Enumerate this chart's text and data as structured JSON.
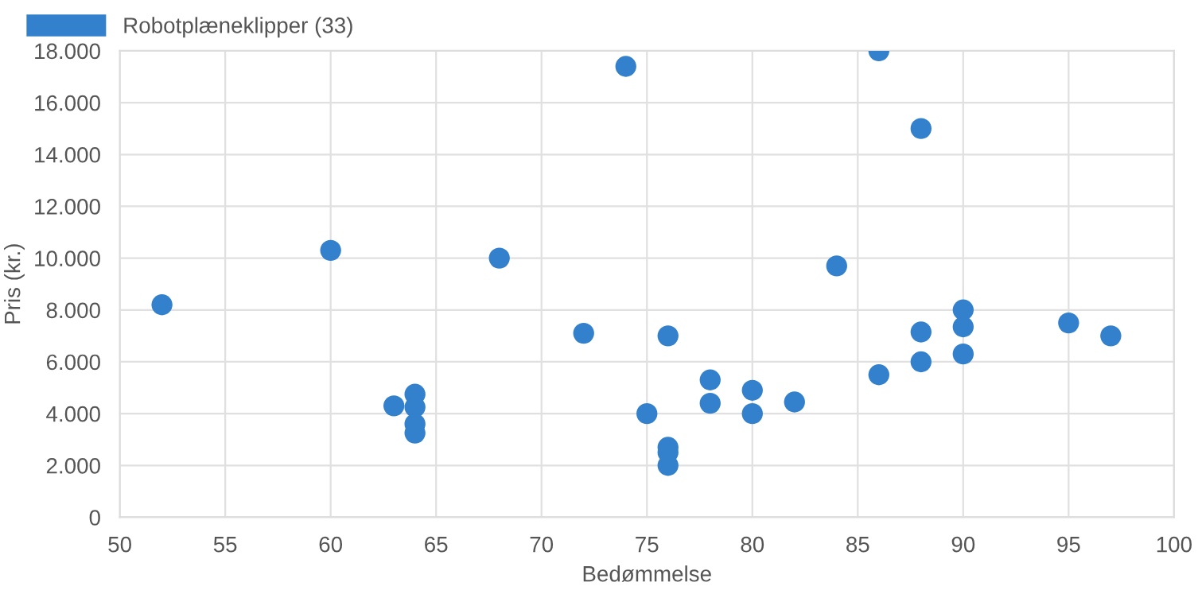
{
  "chart_data": {
    "type": "scatter",
    "xlabel": "Bedømmelse",
    "ylabel": "Pris (kr.)",
    "series": [
      {
        "name": "Robotplæneklipper (33)",
        "color": "#3380cc",
        "x": [
          52,
          60,
          68,
          72,
          63,
          64,
          64,
          64,
          64,
          74,
          86,
          88,
          84,
          90,
          90,
          88,
          95,
          97,
          76,
          90,
          88,
          86,
          78,
          78,
          80,
          80,
          82,
          75,
          76,
          76,
          76
        ],
        "values": [
          8200,
          10300,
          10000,
          7100,
          4300,
          4750,
          4250,
          3600,
          3250,
          17400,
          18000,
          15000,
          9700,
          8000,
          7350,
          7150,
          7500,
          7000,
          7000,
          6300,
          6000,
          5500,
          5300,
          4400,
          4900,
          4000,
          4450,
          4000,
          2700,
          2500,
          2000
        ]
      }
    ],
    "xlim": [
      50,
      100
    ],
    "xticks": [
      50,
      55,
      60,
      65,
      70,
      75,
      80,
      85,
      90,
      95,
      100
    ],
    "ylim": [
      0,
      18000
    ],
    "yticks": [
      {
        "value": 0,
        "label": "0"
      },
      {
        "value": 2000,
        "label": "2.000"
      },
      {
        "value": 4000,
        "label": "4.000"
      },
      {
        "value": 6000,
        "label": "6.000"
      },
      {
        "value": 8000,
        "label": "8.000"
      },
      {
        "value": 10000,
        "label": "10.000"
      },
      {
        "value": 12000,
        "label": "12.000"
      },
      {
        "value": 14000,
        "label": "14.000"
      },
      {
        "value": 16000,
        "label": "16.000"
      },
      {
        "value": 18000,
        "label": "18.000"
      }
    ],
    "grid": true,
    "legend": "top",
    "marker": "circle"
  }
}
